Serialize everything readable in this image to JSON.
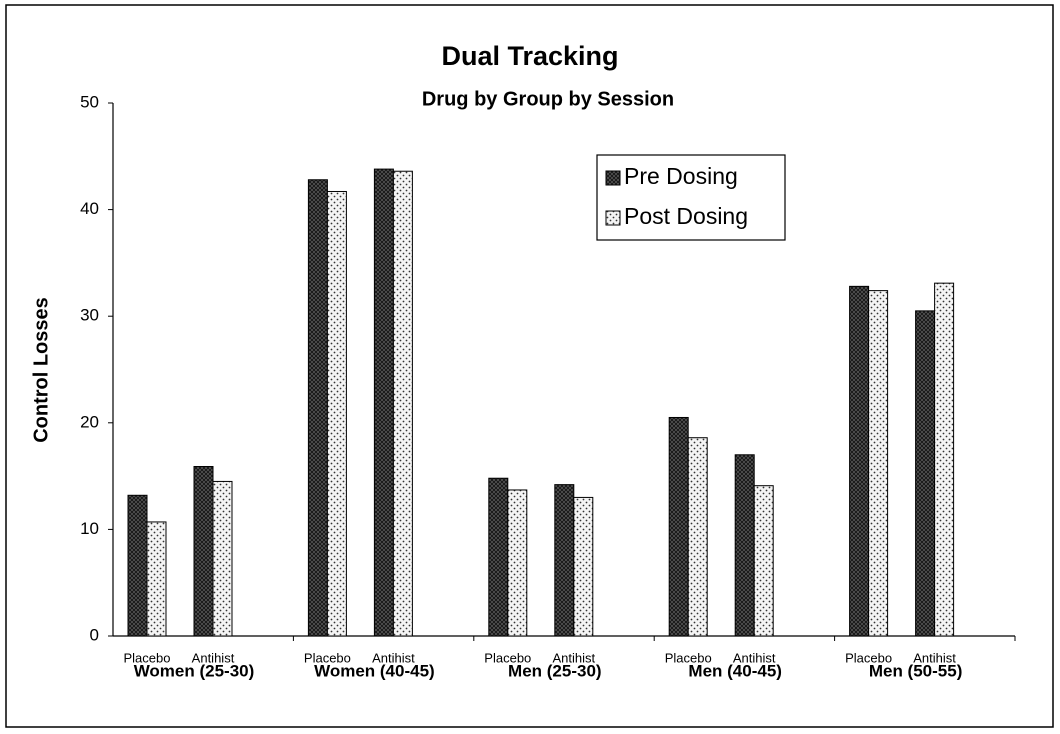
{
  "chart_data": {
    "type": "bar",
    "title": "Dual Tracking",
    "subtitle": "Drug by Group by Session",
    "y_label": "Control Losses",
    "groups": [
      "Women (25-30)",
      "Women (40-45)",
      "Men (25-30)",
      "Men (40-45)",
      "Men (50-55)"
    ],
    "categories": [
      "Placebo",
      "Antihist",
      "Placebo",
      "Antihist",
      "Placebo",
      "Antihist",
      "Placebo",
      "Antihist",
      "Placebo",
      "Antihist"
    ],
    "series": [
      {
        "name": "Pre Dosing",
        "color": "#555555",
        "values": [
          13.2,
          15.9,
          42.8,
          43.8,
          14.8,
          14.2,
          20.5,
          17.0,
          32.8,
          30.5
        ]
      },
      {
        "name": "Post Dosing",
        "color": "#f4f4f4",
        "values": [
          10.7,
          14.5,
          41.7,
          43.6,
          13.7,
          13.0,
          18.6,
          14.1,
          32.4,
          33.1
        ]
      }
    ],
    "ylim": [
      0,
      50
    ],
    "yticks": [
      0,
      10,
      20,
      30,
      40,
      50
    ],
    "legend": "top-right"
  }
}
